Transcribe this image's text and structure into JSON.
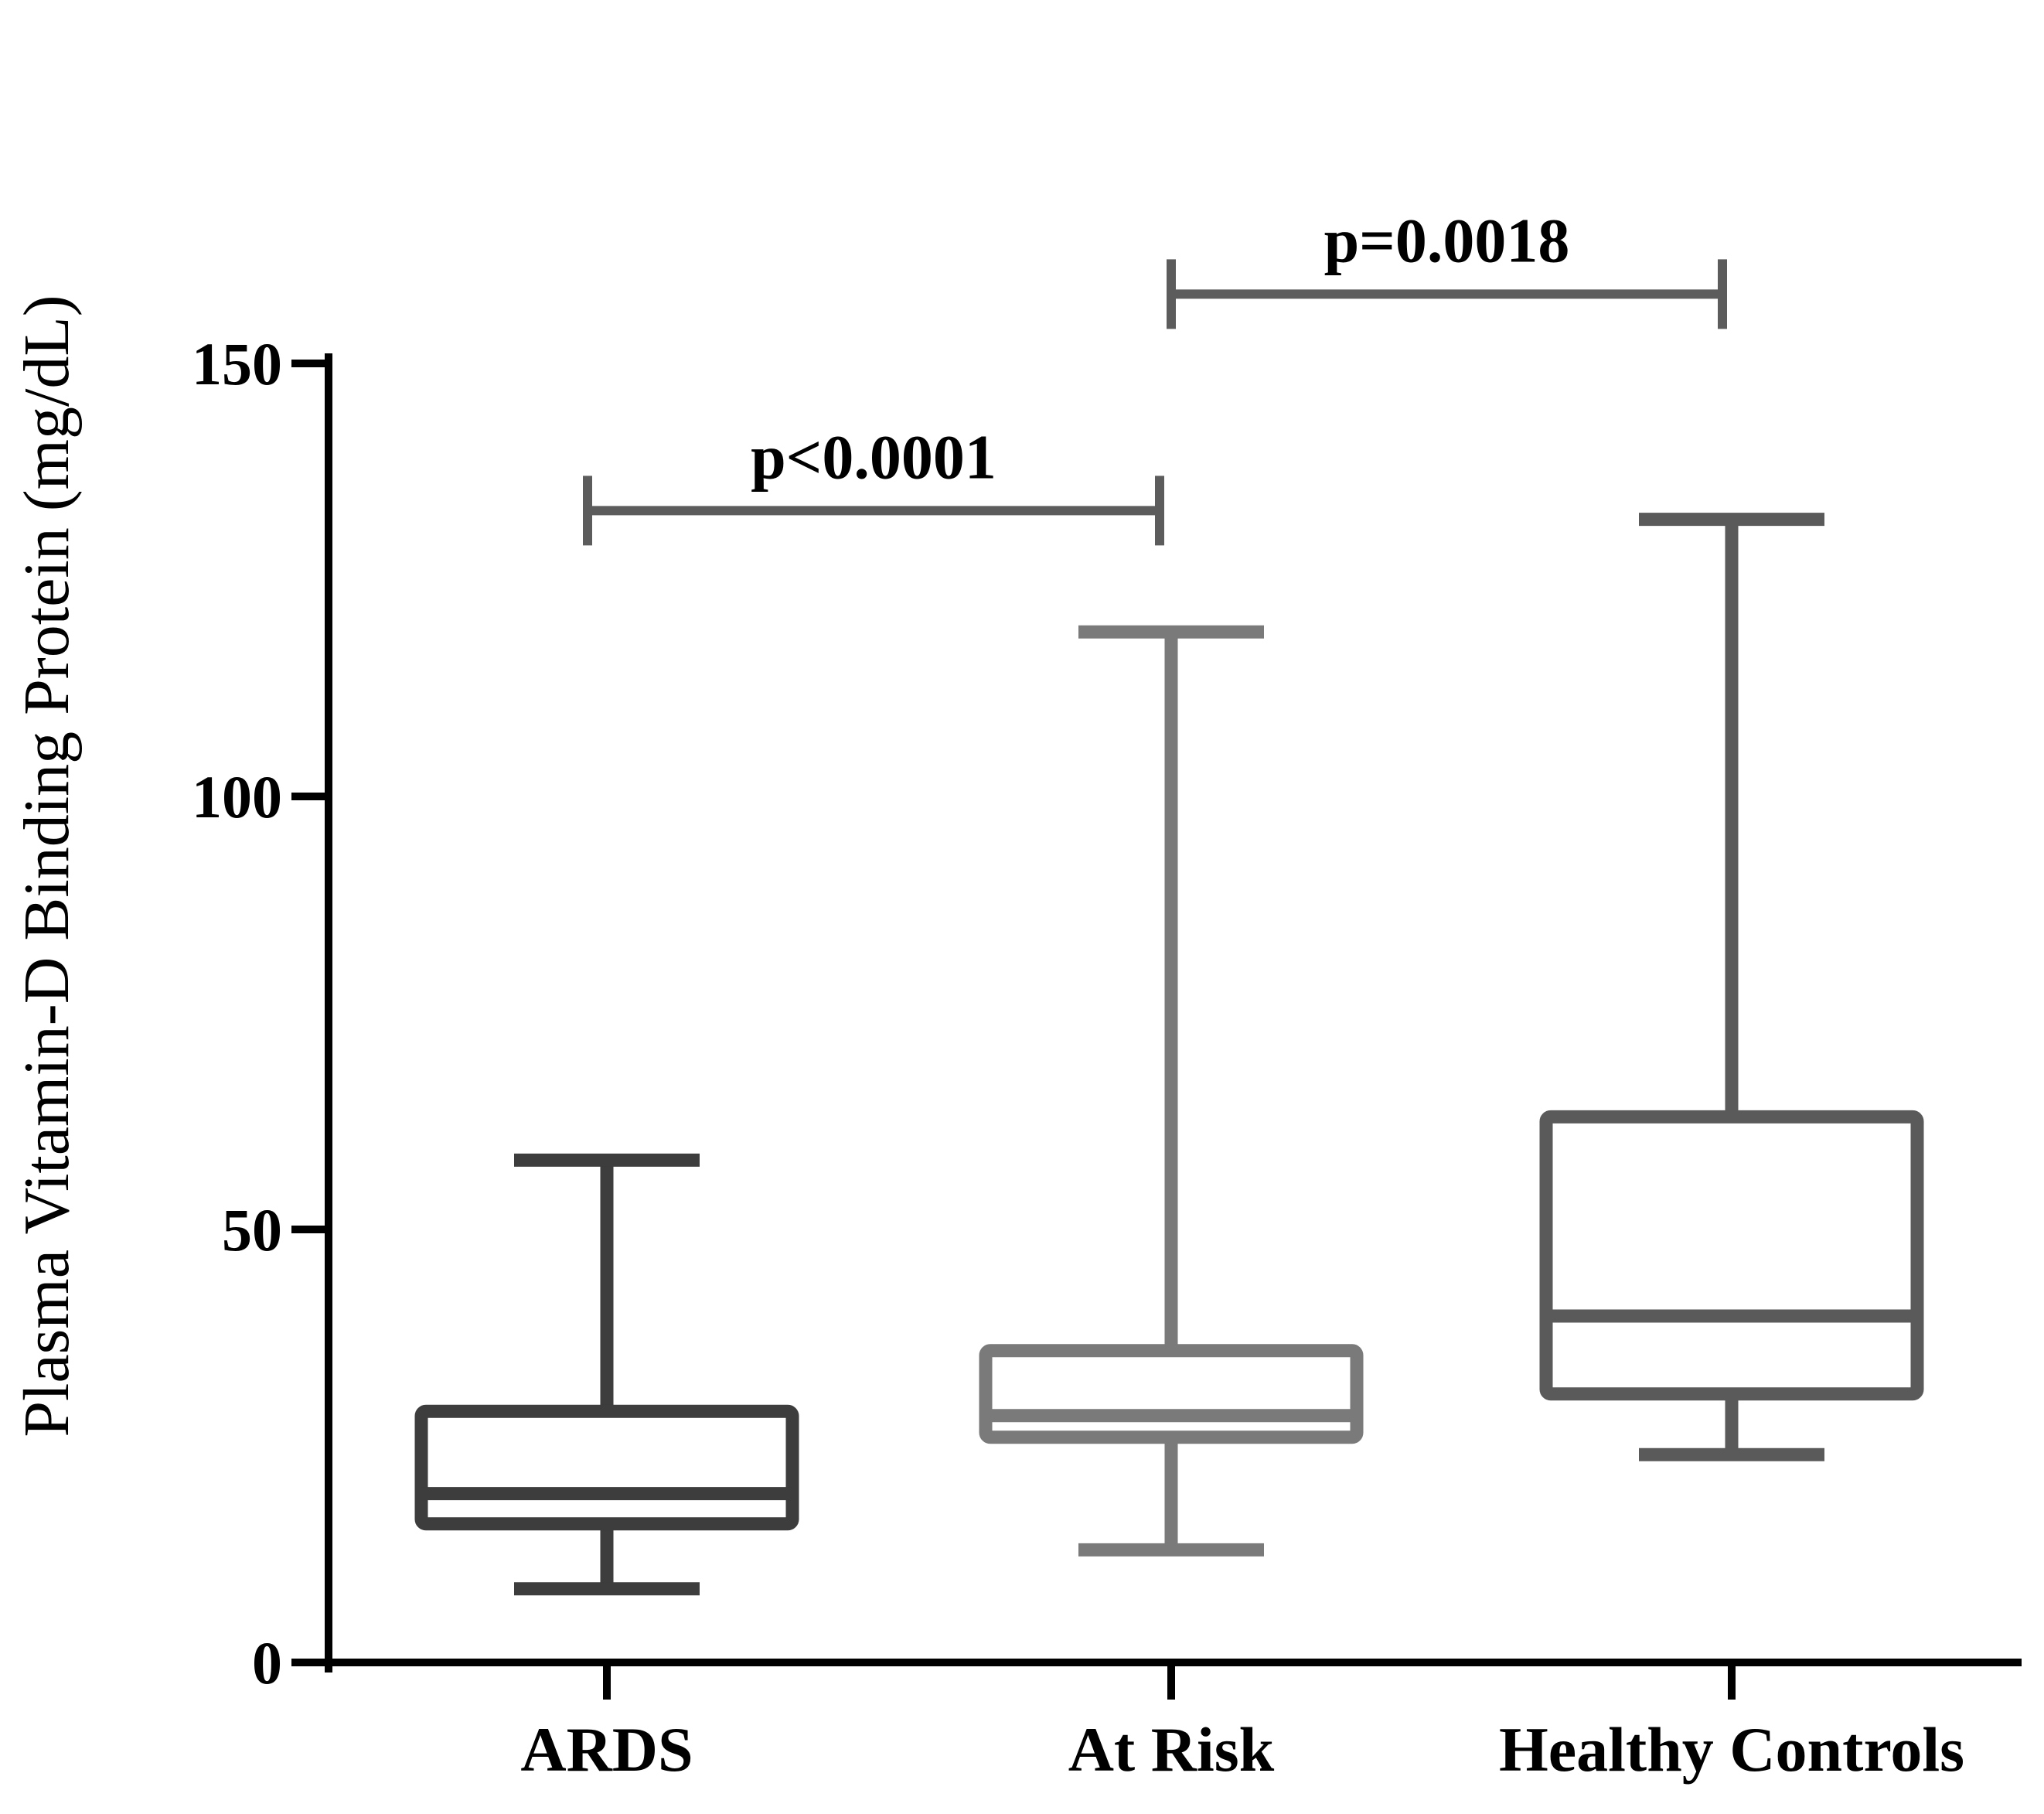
{
  "chart_data": {
    "type": "box",
    "title": "",
    "xlabel": "",
    "ylabel": "Plasma Vitamin-D Binding Protein (mg/dL)",
    "ylim": [
      0,
      150
    ],
    "yticks": [
      "0",
      "50",
      "100",
      "150"
    ],
    "ytick_values": [
      0,
      50,
      100,
      150
    ],
    "grid": false,
    "categories": [
      "ARDS",
      "At Risk",
      "Healthy Controls"
    ],
    "series": [
      {
        "category": "ARDS",
        "min": 8.5,
        "q1": 16,
        "median": 19.5,
        "q3": 29,
        "max": 58,
        "color": "#3d3d3d"
      },
      {
        "category": "At Risk",
        "min": 13,
        "q1": 26,
        "median": 28.5,
        "q3": 36,
        "max": 119,
        "color": "#7a7a7a"
      },
      {
        "category": "Healthy Controls",
        "min": 24,
        "q1": 31,
        "median": 40,
        "q3": 63,
        "max": 132,
        "color": "#5a5a5a"
      }
    ],
    "annotations": [
      {
        "text": "p<0.0001",
        "from": "ARDS",
        "to": "At Risk",
        "y": 133
      },
      {
        "text": "p=0.0018",
        "from": "At Risk",
        "to": "Healthy Controls",
        "y": 158
      }
    ]
  }
}
